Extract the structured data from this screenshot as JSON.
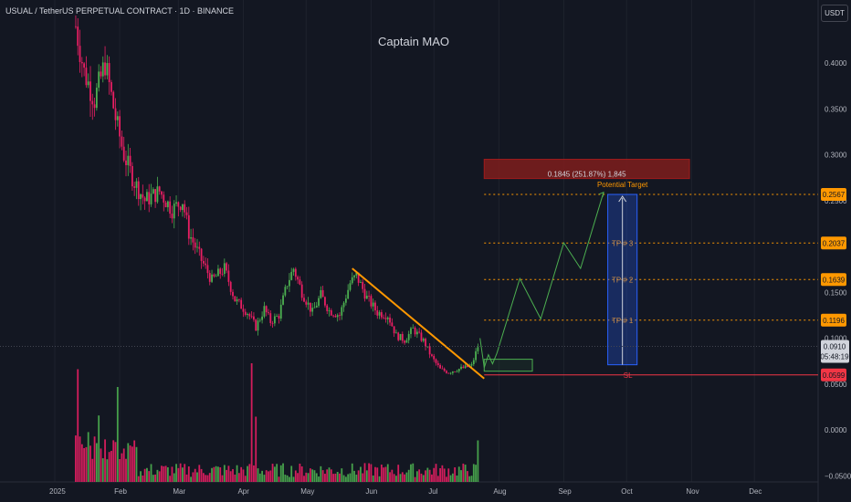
{
  "header": {
    "symbol_line": "USUAL / TetherUS PERPETUAL CONTRACT · 1D · BINANCE",
    "watermark": "Captain MAO",
    "currency": "USDT"
  },
  "colors": {
    "background": "#131722",
    "up": "#26a69a",
    "up_bright": "#4caf50",
    "down": "#e91e63",
    "trendline": "#ff9800",
    "projection": "#4caf50",
    "target_zone": "#7f1d1d",
    "position_box": "#2962ff",
    "stop_loss": "#f23645",
    "tp_label": "#ff9800"
  },
  "chart_data": {
    "type": "candlestick",
    "title": "USUAL / TetherUS PERPETUAL CONTRACT · 1D · BINANCE",
    "y_ticks": [
      "0.4000",
      "0.3500",
      "0.3000",
      "0.2500",
      "0.1500",
      "0.1000",
      "0.0500",
      "0.0000",
      "−0.0500"
    ],
    "x_ticks": [
      "2025",
      "Feb",
      "Mar",
      "Apr",
      "May",
      "Jun",
      "Jul",
      "Aug",
      "Sep",
      "Oct",
      "Nov",
      "Dec"
    ],
    "ylim": [
      -0.05,
      0.46
    ],
    "price_path": [
      {
        "date": "2025-01-11",
        "price": 0.44
      },
      {
        "date": "2025-01-15",
        "price": 0.39
      },
      {
        "date": "2025-01-20",
        "price": 0.36
      },
      {
        "date": "2025-01-25",
        "price": 0.4
      },
      {
        "date": "2025-01-30",
        "price": 0.34
      },
      {
        "date": "2025-02-03",
        "price": 0.3
      },
      {
        "date": "2025-02-08",
        "price": 0.27
      },
      {
        "date": "2025-02-13",
        "price": 0.25
      },
      {
        "date": "2025-02-20",
        "price": 0.26
      },
      {
        "date": "2025-02-26",
        "price": 0.24
      },
      {
        "date": "2025-03-03",
        "price": 0.25
      },
      {
        "date": "2025-03-06",
        "price": 0.215
      },
      {
        "date": "2025-03-12",
        "price": 0.185
      },
      {
        "date": "2025-03-17",
        "price": 0.163
      },
      {
        "date": "2025-03-23",
        "price": 0.176
      },
      {
        "date": "2025-03-28",
        "price": 0.142
      },
      {
        "date": "2025-04-03",
        "price": 0.128
      },
      {
        "date": "2025-04-07",
        "price": 0.112
      },
      {
        "date": "2025-04-11",
        "price": 0.132
      },
      {
        "date": "2025-04-14",
        "price": 0.118
      },
      {
        "date": "2025-04-18",
        "price": 0.125
      },
      {
        "date": "2025-04-22",
        "price": 0.16
      },
      {
        "date": "2025-04-25",
        "price": 0.176
      },
      {
        "date": "2025-04-29",
        "price": 0.15
      },
      {
        "date": "2025-05-04",
        "price": 0.128
      },
      {
        "date": "2025-05-08",
        "price": 0.147
      },
      {
        "date": "2025-05-12",
        "price": 0.13
      },
      {
        "date": "2025-05-17",
        "price": 0.125
      },
      {
        "date": "2025-05-22",
        "price": 0.16
      },
      {
        "date": "2025-05-25",
        "price": 0.168
      },
      {
        "date": "2025-05-30",
        "price": 0.144
      },
      {
        "date": "2025-06-04",
        "price": 0.128
      },
      {
        "date": "2025-06-09",
        "price": 0.125
      },
      {
        "date": "2025-06-13",
        "price": 0.103
      },
      {
        "date": "2025-06-17",
        "price": 0.098
      },
      {
        "date": "2025-06-21",
        "price": 0.11
      },
      {
        "date": "2025-06-26",
        "price": 0.097
      },
      {
        "date": "2025-06-30",
        "price": 0.079
      },
      {
        "date": "2025-07-04",
        "price": 0.066
      },
      {
        "date": "2025-07-08",
        "price": 0.063
      },
      {
        "date": "2025-07-12",
        "price": 0.066
      },
      {
        "date": "2025-07-16",
        "price": 0.068
      },
      {
        "date": "2025-07-19",
        "price": 0.07
      },
      {
        "date": "2025-07-22",
        "price": 0.091
      }
    ],
    "trendline": [
      {
        "date": "2025-05-23",
        "price": 0.176
      },
      {
        "date": "2025-07-25",
        "price": 0.056
      }
    ],
    "projection_path": [
      {
        "date": "2025-07-23",
        "price": 0.1
      },
      {
        "date": "2025-07-25",
        "price": 0.068
      },
      {
        "date": "2025-07-27",
        "price": 0.082
      },
      {
        "date": "2025-07-29",
        "price": 0.072
      },
      {
        "date": "2025-07-31",
        "price": 0.083
      },
      {
        "date": "2025-08-11",
        "price": 0.165
      },
      {
        "date": "2025-08-21",
        "price": 0.121
      },
      {
        "date": "2025-09-01",
        "price": 0.204
      },
      {
        "date": "2025-09-09",
        "price": 0.176
      },
      {
        "date": "2025-09-20",
        "price": 0.259
      }
    ],
    "consolidation_box": {
      "date_start": "2025-07-25",
      "date_end": "2025-08-17",
      "price_low": 0.064,
      "price_high": 0.077
    },
    "target_zone": {
      "date_start": "2025-07-25",
      "date_end": "2025-10-31",
      "price_low": 0.274,
      "price_high": 0.295,
      "label": "0.1845 (251.87%) 1,845"
    },
    "position_box": {
      "date_start": "2025-09-22",
      "date_end": "2025-10-06",
      "price_entry": 0.071,
      "price_target": 0.2567,
      "label": "Potential Target"
    },
    "levels": [
      {
        "name": "target",
        "price": 0.2567,
        "label": "",
        "tag": "0.2567"
      },
      {
        "name": "tp3",
        "price": 0.2037,
        "label": "TP # 3",
        "tag": "0.2037"
      },
      {
        "name": "tp2",
        "price": 0.1639,
        "label": "TP # 2",
        "tag": "0.1639"
      },
      {
        "name": "tp1",
        "price": 0.1196,
        "label": "TP # 1",
        "tag": "0.1196"
      },
      {
        "name": "sl",
        "price": 0.0599,
        "label": "SL",
        "tag": "0.0599"
      }
    ],
    "current_price": {
      "price": 0.091,
      "tag": "0.0910",
      "countdown": "05:48:19"
    },
    "volume": {
      "spikes": [
        {
          "date": "2025-01-12",
          "value": 0.95
        },
        {
          "date": "2025-01-17",
          "value": 0.42
        },
        {
          "date": "2025-01-22",
          "value": 0.56
        },
        {
          "date": "2025-01-31",
          "value": 0.8
        },
        {
          "date": "2025-02-08",
          "value": 0.35
        },
        {
          "date": "2025-04-05",
          "value": 1.0
        },
        {
          "date": "2025-04-07",
          "value": 0.55
        },
        {
          "date": "2025-07-22",
          "value": 0.35
        }
      ]
    }
  }
}
